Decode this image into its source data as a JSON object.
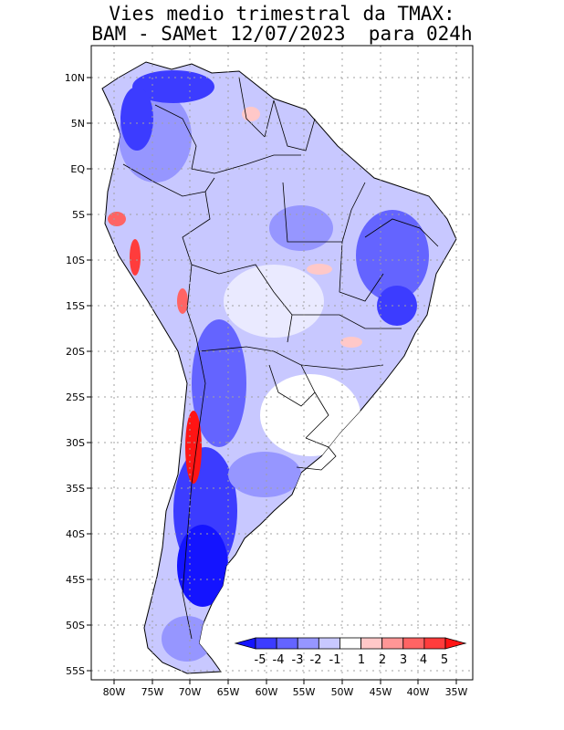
{
  "title": {
    "line1": "Vies medio trimestral da TMAX:",
    "line2": "BAM - SAMet 12/07/2023  para 024h"
  },
  "lat_labels": [
    "10N",
    "5N",
    "EQ",
    "5S",
    "10S",
    "15S",
    "20S",
    "25S",
    "30S",
    "35S",
    "40S",
    "45S",
    "50S",
    "55S"
  ],
  "lon_labels": [
    "80W",
    "75W",
    "70W",
    "65W",
    "60W",
    "55W",
    "50W",
    "45W",
    "40W",
    "35W"
  ],
  "colorbar": {
    "labels": [
      "-5",
      "-4",
      "-3",
      "-2",
      "-1",
      "1",
      "2",
      "3",
      "4",
      "5"
    ],
    "colors": [
      "#1414ff",
      "#3c3cff",
      "#6464ff",
      "#9696ff",
      "#c8c8ff",
      "#ffffff",
      "#ffc8c8",
      "#ff9696",
      "#ff6464",
      "#ff3c3c",
      "#ff1414"
    ]
  },
  "colors": {
    "frame": "#000000",
    "grid": "#a0a0a0",
    "land_base": "#c8c8ff"
  }
}
